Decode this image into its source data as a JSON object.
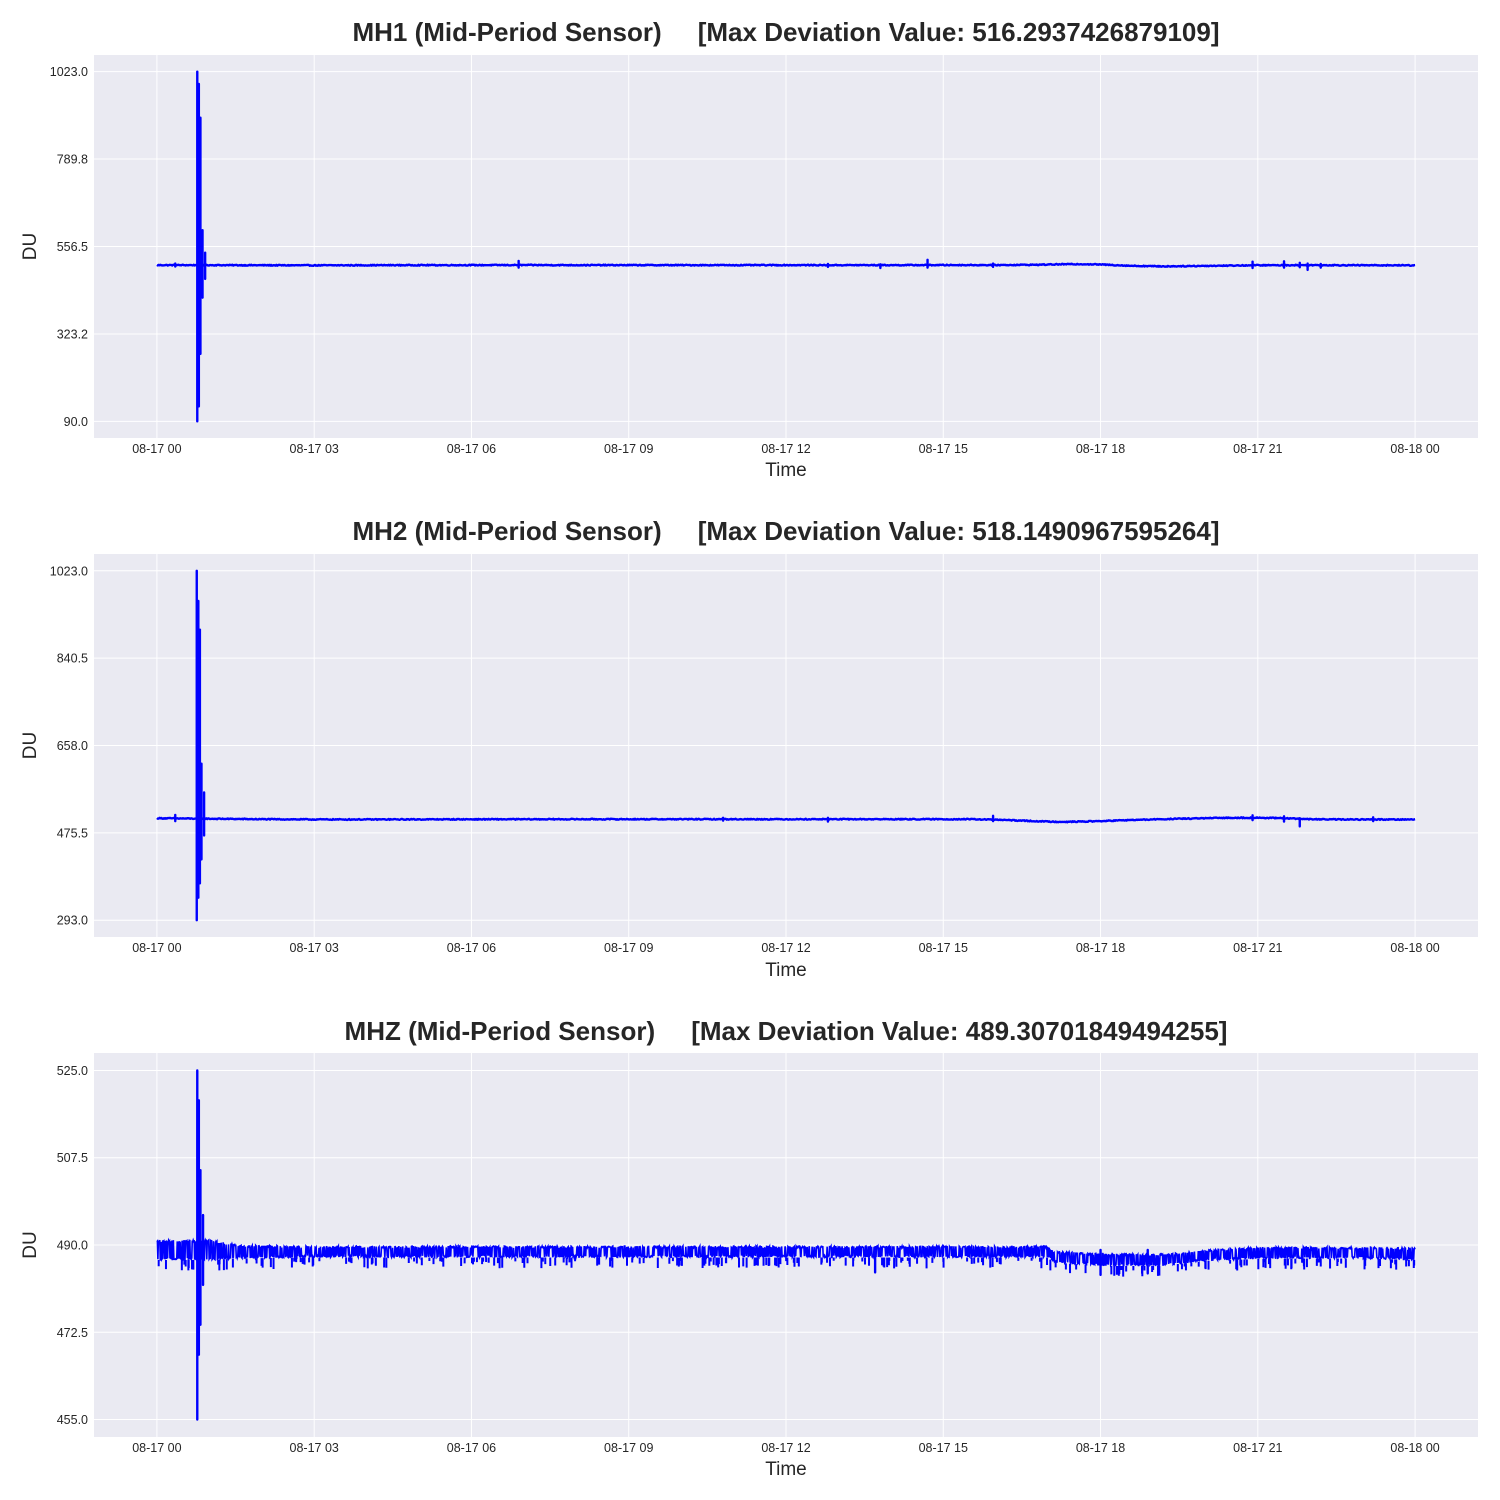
{
  "figure": {
    "background": "#ffffff",
    "axes_background": "#eaeaf2",
    "grid_color": "#ffffff",
    "line_color": "#0000ff"
  },
  "chart_data": [
    {
      "type": "line",
      "title": "MH1 (Mid-Period Sensor)     [Max Deviation Value: 516.2937426879109]",
      "xlabel": "Time",
      "ylabel": "DU",
      "x_tick_labels": [
        "08-17 00",
        "08-17 03",
        "08-17 06",
        "08-17 09",
        "08-17 12",
        "08-17 15",
        "08-17 18",
        "08-17 21",
        "08-18 00"
      ],
      "x_range": [
        "2024-08-17 00:00",
        "2024-08-18 00:00"
      ],
      "x_domain_hours": [
        -1.2,
        25.2
      ],
      "y_ticks": [
        90.0,
        323.2,
        556.5,
        789.8,
        1023.0
      ],
      "y_tick_labels": [
        "90.0",
        "323.2",
        "556.5",
        "789.8",
        "1023.0"
      ],
      "ylim": [
        45.6,
        1067.4
      ],
      "grid": true,
      "series": [
        {
          "color": "#0000ff",
          "baseline_hours": [
            0,
            1,
            2,
            3,
            4,
            5,
            6,
            7,
            8,
            9,
            10,
            11,
            12,
            13,
            14,
            15,
            16,
            16.8,
            17.2,
            17.6,
            18,
            18.6,
            19.2,
            19.8,
            20.4,
            21,
            22,
            23,
            24
          ],
          "baseline_values": [
            506.8,
            506.8,
            506.5,
            506.2,
            506.5,
            506.8,
            506.8,
            507.0,
            506.8,
            506.8,
            506.8,
            506.8,
            506.8,
            506.8,
            506.8,
            507.0,
            507.0,
            507.8,
            509.0,
            509.5,
            508.5,
            505.0,
            503.5,
            504.5,
            505.5,
            506.5,
            506.8,
            506.5,
            506.3
          ],
          "spikes": [
            {
              "t": 0.77,
              "min": 90.0,
              "max": 1023.0
            },
            {
              "t": 0.8,
              "min": 130.0,
              "max": 990.0
            },
            {
              "t": 0.83,
              "min": 270.0,
              "max": 900.0
            },
            {
              "t": 0.87,
              "min": 420.0,
              "max": 600.0
            },
            {
              "t": 0.92,
              "min": 470.0,
              "max": 540.0
            },
            {
              "t": 0.35,
              "min": 503.0,
              "max": 511.0
            },
            {
              "t": 6.9,
              "min": 500.0,
              "max": 518.0
            },
            {
              "t": 12.8,
              "min": 502.0,
              "max": 510.0
            },
            {
              "t": 13.8,
              "min": 499.0,
              "max": 509.0
            },
            {
              "t": 14.7,
              "min": 500.0,
              "max": 521.0
            },
            {
              "t": 15.95,
              "min": 502.0,
              "max": 511.0
            },
            {
              "t": 20.9,
              "min": 499.0,
              "max": 516.0
            },
            {
              "t": 21.5,
              "min": 500.0,
              "max": 517.0
            },
            {
              "t": 21.8,
              "min": 501.0,
              "max": 513.0
            },
            {
              "t": 21.95,
              "min": 494.0,
              "max": 511.0
            },
            {
              "t": 22.2,
              "min": 500.0,
              "max": 510.0
            }
          ]
        }
      ]
    },
    {
      "type": "line",
      "title": "MH2 (Mid-Period Sensor)     [Max Deviation Value: 518.1490967595264]",
      "xlabel": "Time",
      "ylabel": "DU",
      "x_tick_labels": [
        "08-17 00",
        "08-17 03",
        "08-17 06",
        "08-17 09",
        "08-17 12",
        "08-17 15",
        "08-17 18",
        "08-17 21",
        "08-18 00"
      ],
      "x_range": [
        "2024-08-17 00:00",
        "2024-08-18 00:00"
      ],
      "x_domain_hours": [
        -1.2,
        25.2
      ],
      "y_ticks": [
        293.0,
        475.5,
        658.0,
        840.5,
        1023.0
      ],
      "y_tick_labels": [
        "293.0",
        "475.5",
        "658.0",
        "840.5",
        "1023.0"
      ],
      "ylim": [
        257.9,
        1058.1
      ],
      "grid": true,
      "series": [
        {
          "color": "#0000ff",
          "baseline_hours": [
            0,
            0.5,
            1,
            1.5,
            2,
            3,
            4,
            6,
            8,
            10,
            12,
            14,
            15.5,
            16,
            16.5,
            17,
            17.4,
            18,
            18.5,
            19,
            19.5,
            20,
            20.5,
            21,
            21.5,
            22,
            22.5,
            23,
            24
          ],
          "baseline_values": [
            506.0,
            505.5,
            505.0,
            504.5,
            504.0,
            503.5,
            503.5,
            503.8,
            504.0,
            504.0,
            504.0,
            504.0,
            504.0,
            503.0,
            501.0,
            499.0,
            498.5,
            500.0,
            502.0,
            503.5,
            505.0,
            506.0,
            507.0,
            507.0,
            506.0,
            504.0,
            503.5,
            503.5,
            503.5
          ],
          "spikes": [
            {
              "t": 0.76,
              "min": 293.0,
              "max": 1023.0
            },
            {
              "t": 0.79,
              "min": 340.0,
              "max": 960.0
            },
            {
              "t": 0.82,
              "min": 370.0,
              "max": 900.0
            },
            {
              "t": 0.85,
              "min": 420.0,
              "max": 620.0
            },
            {
              "t": 0.9,
              "min": 470.0,
              "max": 560.0
            },
            {
              "t": 0.35,
              "min": 500.0,
              "max": 513.0
            },
            {
              "t": 10.8,
              "min": 501.0,
              "max": 507.0
            },
            {
              "t": 12.8,
              "min": 499.0,
              "max": 507.0
            },
            {
              "t": 15.95,
              "min": 500.0,
              "max": 511.0
            },
            {
              "t": 20.9,
              "min": 502.0,
              "max": 512.0
            },
            {
              "t": 21.5,
              "min": 499.0,
              "max": 510.0
            },
            {
              "t": 21.8,
              "min": 489.0,
              "max": 506.0
            },
            {
              "t": 23.2,
              "min": 500.0,
              "max": 508.0
            }
          ]
        }
      ]
    },
    {
      "type": "line",
      "title": "MHZ (Mid-Period Sensor)     [Max Deviation Value: 489.30701849494255]",
      "xlabel": "Time",
      "ylabel": "DU",
      "x_tick_labels": [
        "08-17 00",
        "08-17 03",
        "08-17 06",
        "08-17 09",
        "08-17 12",
        "08-17 15",
        "08-17 18",
        "08-17 21",
        "08-18 00"
      ],
      "x_range": [
        "2024-08-17 00:00",
        "2024-08-18 00:00"
      ],
      "x_domain_hours": [
        -1.2,
        25.2
      ],
      "y_ticks": [
        455.0,
        472.5,
        490.0,
        507.5,
        525.0
      ],
      "y_tick_labels": [
        "455.0",
        "472.5",
        "490.0",
        "507.5",
        "525.0"
      ],
      "ylim": [
        451.5,
        528.5
      ],
      "grid": true,
      "series": [
        {
          "color": "#0000ff",
          "band_hours": [
            0,
            1.0,
            1.6,
            3.0,
            6.0,
            9.0,
            12.0,
            15.0,
            17.0,
            17.1,
            18.0,
            19.0,
            19.5,
            20.0,
            20.5,
            21.0,
            22.0,
            23.0,
            24.0
          ],
          "band_low": [
            487.0,
            487.0,
            487.3,
            487.5,
            487.5,
            487.5,
            487.5,
            487.5,
            487.5,
            486.5,
            485.8,
            485.8,
            486.2,
            486.8,
            487.0,
            487.2,
            487.3,
            487.3,
            487.0
          ],
          "band_high": [
            491.0,
            491.0,
            490.0,
            489.8,
            489.8,
            489.8,
            489.8,
            489.8,
            489.8,
            488.8,
            488.3,
            488.2,
            488.4,
            489.0,
            489.3,
            489.6,
            489.6,
            489.6,
            489.4
          ],
          "spikes": [
            {
              "t": 0.77,
              "min": 455.0,
              "max": 525.0
            },
            {
              "t": 0.8,
              "min": 468.0,
              "max": 519.0
            },
            {
              "t": 0.83,
              "min": 474.0,
              "max": 505.0
            },
            {
              "t": 0.88,
              "min": 482.0,
              "max": 496.0
            },
            {
              "t": 13.7,
              "min": 484.5,
              "max": 489.5
            },
            {
              "t": 18.0,
              "min": 484.0,
              "max": 489.0
            },
            {
              "t": 18.9,
              "min": 484.3,
              "max": 489.0
            }
          ]
        }
      ]
    }
  ]
}
